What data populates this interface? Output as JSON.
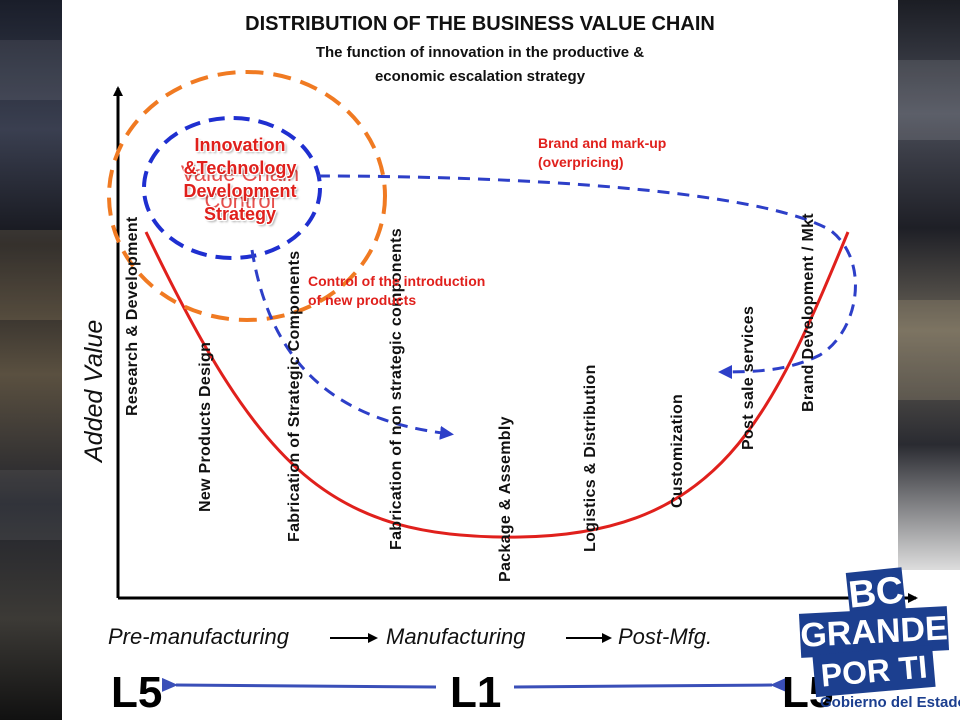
{
  "header": {
    "title": "DISTRIBUTION OF THE BUSINESS VALUE CHAIN",
    "subtitle_line1": "The function of innovation in the productive &",
    "subtitle_line2": "economic escalation strategy"
  },
  "axes": {
    "y_label": "Added Value"
  },
  "stages": [
    "Research & Development",
    "New Products Design",
    "Fabrication of Strategic Components",
    "Fabrication of non strategic components",
    "Package & Assembly",
    "Logistics & Distribution",
    "Customization",
    "Post sale services",
    "Brand Development / Mkt"
  ],
  "annotations": {
    "brand_markup": "Brand and mark-up (overpricing)",
    "control_intro": "Control of the introduction of new products",
    "value_chain_control": "Value Chain Control",
    "innovation_strategy": "Innovation &Technology Development Strategy"
  },
  "phases": [
    "Pre-manufacturing",
    "Manufacturing",
    "Post-Mfg."
  ],
  "levels": {
    "left": "L5",
    "middle": "L1",
    "right": "L5"
  },
  "logo": {
    "line1": "BC",
    "line2": "GRANDE",
    "line3": "POR TI",
    "line4": "Gobierno del Estado"
  },
  "colors": {
    "curve": "#e0201c",
    "dashed_blue": "#2d3fc8",
    "dashed_orange": "#f07a22",
    "level_arrow": "#3a4fb8",
    "logo_blue": "#1c3f8f"
  }
}
